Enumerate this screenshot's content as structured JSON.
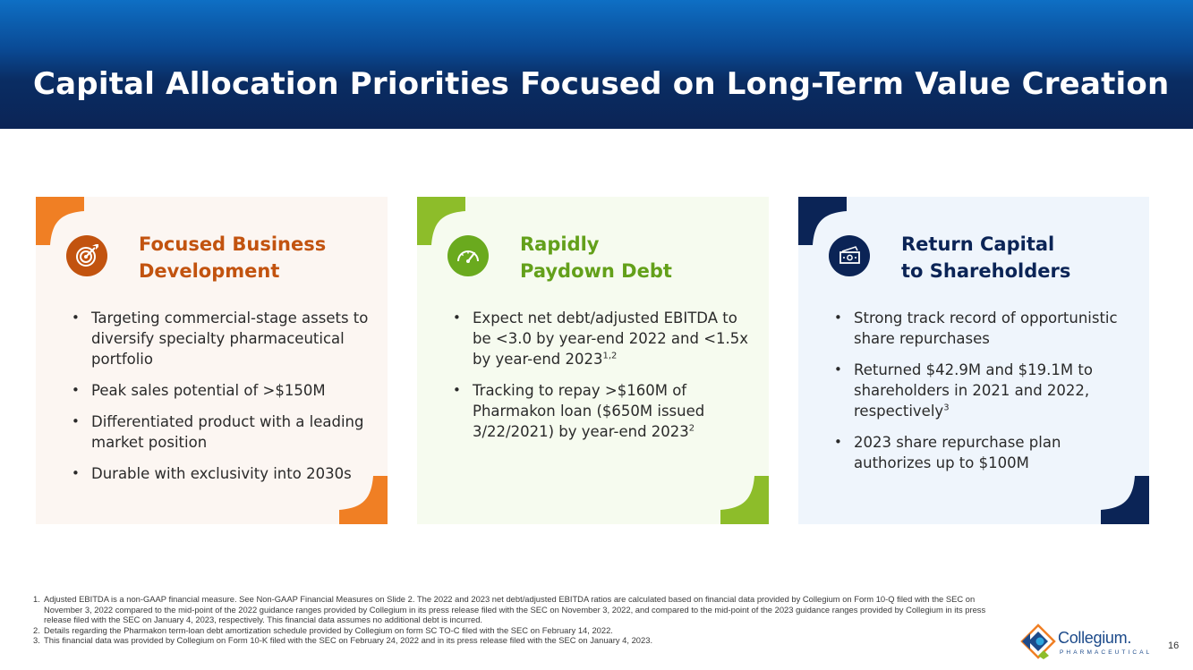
{
  "header": {
    "title": "Capital Allocation Priorities Focused on Long-Term Value Creation"
  },
  "colors": {
    "orange": "#f07f24",
    "green": "#8dbd2a",
    "navy": "#0b2456"
  },
  "cards": [
    {
      "icon": "target-icon",
      "title_line1": "Focused Business",
      "title_line2": "Development",
      "bullets": [
        {
          "text": "Targeting commercial-stage assets to diversify specialty pharmaceutical portfolio"
        },
        {
          "text": "Peak sales potential of >$150M"
        },
        {
          "text": "Differentiated product with a leading market position"
        },
        {
          "text": "Durable with exclusivity into 2030s"
        }
      ]
    },
    {
      "icon": "speedometer-icon",
      "title_line1": "Rapidly",
      "title_line2": "Paydown Debt",
      "bullets": [
        {
          "text": "Expect net debt/adjusted EBITDA to be <3.0 by year-end 2022 and <1.5x by year-end 2023",
          "sup": "1,2"
        },
        {
          "text": "Tracking to repay >$160M of Pharmakon loan ($650M issued 3/22/2021) by year-end 2023",
          "sup": "2"
        }
      ]
    },
    {
      "icon": "money-icon",
      "title_line1": "Return Capital",
      "title_line2": "to Shareholders",
      "bullets": [
        {
          "text": "Strong track record of opportunistic share repurchases"
        },
        {
          "text": "Returned $42.9M and $19.1M to shareholders in 2021 and 2022, respectively",
          "sup": "3"
        },
        {
          "text": "2023 share repurchase plan authorizes up to $100M"
        }
      ]
    }
  ],
  "footnotes": [
    {
      "num": "1.",
      "text": "Adjusted EBITDA is a non-GAAP financial measure. See Non-GAAP Financial Measures on Slide 2. The 2022 and 2023 net debt/adjusted EBITDA ratios are calculated based on financial data provided by Collegium on Form 10-Q filed with the SEC on November 3, 2022 compared to the mid-point of the 2022 guidance ranges provided by Collegium in its press release filed with the SEC on November 3, 2022, and compared to the mid-point of the 2023 guidance ranges provided by Collegium in its press release filed with the SEC on January 4, 2023, respectively.  This financial data assumes no additional debt is incurred."
    },
    {
      "num": "2.",
      "text": "Details regarding the Pharmakon term-loan debt amortization schedule provided by Collegium on form SC TO-C filed with the SEC on February 14, 2022."
    },
    {
      "num": "3.",
      "text": "This financial data was provided by Collegium on Form 10-K filed with the SEC on February 24, 2022 and in its press release filed with the SEC on January 4, 2023."
    }
  ],
  "logo": {
    "name": "Collegium.",
    "subtitle": "PHARMACEUTICAL"
  },
  "page_number": "16"
}
